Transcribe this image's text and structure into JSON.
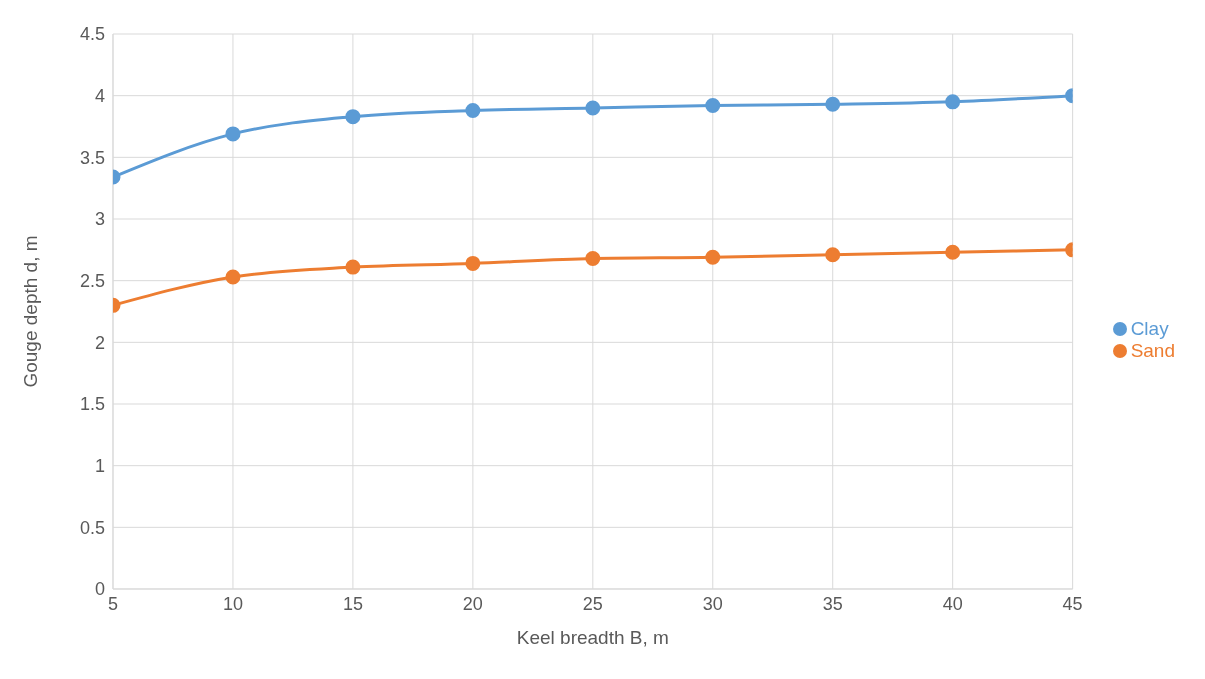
{
  "chart_data": {
    "type": "line",
    "xlabel": "Keel breadth B, m",
    "ylabel": "Gouge depth d, m",
    "x": [
      5,
      10,
      15,
      20,
      25,
      30,
      35,
      40,
      45
    ],
    "series": [
      {
        "name": "Clay",
        "color": "#5b9bd5",
        "values": [
          3.34,
          3.69,
          3.83,
          3.88,
          3.9,
          3.92,
          3.93,
          3.95,
          4.0
        ]
      },
      {
        "name": "Sand",
        "color": "#ed7d31",
        "values": [
          2.3,
          2.53,
          2.61,
          2.64,
          2.68,
          2.69,
          2.71,
          2.73,
          2.75
        ]
      }
    ],
    "xlim": [
      5,
      45
    ],
    "xticks": [
      5,
      10,
      15,
      20,
      25,
      30,
      35,
      40,
      45
    ],
    "ylim": [
      0,
      4.5
    ],
    "yticks": [
      0,
      0.5,
      1,
      1.5,
      2,
      2.5,
      3,
      3.5,
      4,
      4.5
    ],
    "grid": true,
    "legend": "right",
    "marker": "circle",
    "line_style": "solid"
  }
}
